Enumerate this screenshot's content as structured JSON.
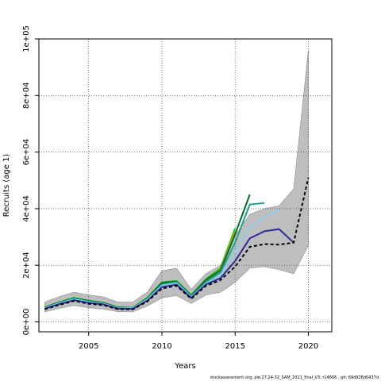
{
  "chart_data": {
    "type": "line",
    "title": "",
    "xlabel": "Years",
    "ylabel": "Recruits (age 1)",
    "xlim": [
      2001.6,
      2021.6
    ],
    "ylim": [
      -3500,
      100000
    ],
    "x_ticks": [
      2005,
      2010,
      2015,
      2020
    ],
    "x_tick_labels": [
      "2005",
      "2010",
      "2015",
      "2020"
    ],
    "y_ticks": [
      0,
      20000,
      40000,
      60000,
      80000,
      100000
    ],
    "y_tick_labels": [
      "0e+00",
      "2e+04",
      "4e+04",
      "6e+04",
      "8e+04",
      "1e+05"
    ],
    "grid": true,
    "grid_style": "dotted",
    "confidence_band": {
      "x": [
        2002,
        2003,
        2004,
        2005,
        2006,
        2007,
        2008,
        2009,
        2010,
        2011,
        2012,
        2013,
        2014,
        2015,
        2016,
        2017,
        2018,
        2019,
        2020
      ],
      "lower": [
        3500,
        4800,
        5800,
        5000,
        4500,
        3600,
        3500,
        5600,
        8500,
        9300,
        6500,
        9500,
        10500,
        14000,
        19000,
        19500,
        18500,
        17000,
        27000
      ],
      "upper": [
        7000,
        8900,
        10500,
        9500,
        8800,
        7000,
        7000,
        10500,
        18000,
        19000,
        11500,
        17000,
        20000,
        30500,
        38000,
        40000,
        41000,
        47000,
        96000
      ]
    },
    "series": [
      {
        "color": "#00cc00",
        "style": "solid",
        "x": [
          2002,
          2003,
          2004,
          2005,
          2006,
          2007,
          2008,
          2009,
          2010,
          2011,
          2012,
          2013,
          2014,
          2015
        ],
        "values": [
          5200,
          7000,
          8500,
          7500,
          6800,
          5200,
          5000,
          8500,
          14000,
          14500,
          9500,
          15000,
          19000,
          33000
        ]
      },
      {
        "color": "#e69f00",
        "style": "solid",
        "x": [
          2002,
          2003,
          2004,
          2005,
          2006,
          2007,
          2008,
          2009,
          2010,
          2011,
          2012,
          2013,
          2014,
          2015
        ],
        "values": [
          5000,
          6800,
          8300,
          7300,
          6600,
          5000,
          4900,
          8200,
          13500,
          14000,
          9200,
          14500,
          18500,
          32000
        ]
      },
      {
        "color": "#006d2c",
        "style": "solid",
        "x": [
          2002,
          2003,
          2004,
          2005,
          2006,
          2007,
          2008,
          2009,
          2010,
          2011,
          2012,
          2013,
          2014,
          2015,
          2016
        ],
        "values": [
          5100,
          6900,
          8400,
          7400,
          6700,
          5100,
          4950,
          8300,
          13800,
          14200,
          9300,
          14800,
          18200,
          31000,
          45000
        ]
      },
      {
        "color": "#1fa187",
        "style": "solid",
        "x": [
          2002,
          2003,
          2004,
          2005,
          2006,
          2007,
          2008,
          2009,
          2010,
          2011,
          2012,
          2013,
          2014,
          2015,
          2016,
          2017
        ],
        "values": [
          5000,
          6700,
          8200,
          7200,
          6500,
          5000,
          4900,
          8100,
          13200,
          14000,
          9000,
          14000,
          17500,
          28000,
          41500,
          42000
        ]
      },
      {
        "color": "#87ceeb",
        "style": "solid",
        "x": [
          2002,
          2003,
          2004,
          2005,
          2006,
          2007,
          2008,
          2009,
          2010,
          2011,
          2012,
          2013,
          2014,
          2015,
          2016,
          2017,
          2018
        ],
        "values": [
          4900,
          6600,
          8000,
          7000,
          6400,
          4900,
          4800,
          7900,
          12800,
          13700,
          8800,
          13500,
          16500,
          25000,
          33500,
          37000,
          39500
        ]
      },
      {
        "color": "#2b2b9a",
        "style": "solid",
        "x": [
          2002,
          2003,
          2004,
          2005,
          2006,
          2007,
          2008,
          2009,
          2010,
          2011,
          2012,
          2013,
          2014,
          2015,
          2016,
          2017,
          2018,
          2019
        ],
        "values": [
          4700,
          6300,
          7700,
          6700,
          6200,
          4700,
          4600,
          7500,
          12300,
          13200,
          8500,
          13200,
          15500,
          21500,
          29500,
          32000,
          32800,
          28000
        ]
      },
      {
        "color": "#000000",
        "style": "dashed",
        "x": [
          2002,
          2003,
          2004,
          2005,
          2006,
          2007,
          2008,
          2009,
          2010,
          2011,
          2012,
          2013,
          2014,
          2015,
          2016,
          2017,
          2018,
          2019,
          2020
        ],
        "values": [
          4500,
          6000,
          7400,
          6400,
          5900,
          4500,
          4400,
          7200,
          11800,
          12800,
          8200,
          12700,
          14800,
          19500,
          26500,
          27500,
          27300,
          28000,
          51000
        ]
      }
    ]
  },
  "footer": {
    "text": "stockassessment.org, ple.27.24-32_SAM_2021_final_V3, r14666 , git: 69d926d0437d"
  }
}
